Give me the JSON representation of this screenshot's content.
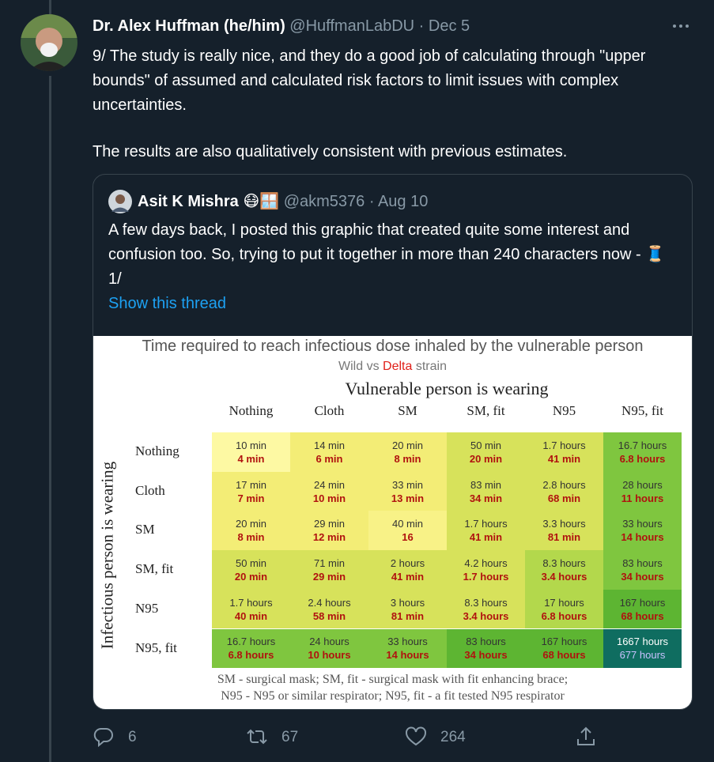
{
  "tweet": {
    "author_name": "Dr. Alex Huffman (he/him)",
    "handle": "@HuffmanLabDU",
    "date": "Dec 5",
    "text": [
      "9/ The study is really nice, and they do a good job of calculating through \"upper bounds\" of assumed and calculated risk factors to limit issues with complex uncertainties.",
      "The results are also qualitatively consistent with previous estimates."
    ]
  },
  "quote": {
    "author_name": "Asit K Mishra 😷🪟",
    "handle": "@akm5376",
    "date": "Aug 10",
    "text": "A few days back, I posted this graphic that created quite some interest and confusion too. So, trying to put it together in more than 240 characters now - 🧵 1/",
    "show_thread": "Show this thread"
  },
  "image": {
    "title": "Time required to reach infectious dose inhaled by the vulnerable person",
    "subtitle": [
      "Wild vs",
      "Delta",
      "strain"
    ],
    "column_title": "Vulnerable person is wearing",
    "row_title": "Infectious person is wearing",
    "columns": [
      "Nothing",
      "Cloth",
      "SM",
      "SM, fit",
      "N95",
      "N95, fit"
    ],
    "rows": [
      {
        "label": "Nothing",
        "cells": [
          [
            "10 min",
            "4 min"
          ],
          [
            "14 min",
            "6 min"
          ],
          [
            "20 min",
            "8 min"
          ],
          [
            "50 min",
            "20 min"
          ],
          [
            "1.7 hours",
            "41 min"
          ],
          [
            "16.7 hours",
            "6.8 hours"
          ]
        ],
        "colors": [
          "#fdf9a3",
          "#f3ed76",
          "#f3ed76",
          "#d7e25b",
          "#d7e25b",
          "#7fc63f"
        ]
      },
      {
        "label": "Cloth",
        "cells": [
          [
            "17 min",
            "7 min"
          ],
          [
            "24 min",
            "10 min"
          ],
          [
            "33 min",
            "13 min"
          ],
          [
            "83 min",
            "34 min"
          ],
          [
            "2.8 hours",
            "68 min"
          ],
          [
            "28 hours",
            "11 hours"
          ]
        ],
        "colors": [
          "#f3ed76",
          "#f3ed76",
          "#f3ed76",
          "#d7e25b",
          "#d7e25b",
          "#7fc63f"
        ]
      },
      {
        "label": "SM",
        "cells": [
          [
            "20 min",
            "8 min"
          ],
          [
            "29 min",
            "12 min"
          ],
          [
            "40 min",
            "16"
          ],
          [
            "1.7 hours",
            "41 min"
          ],
          [
            "3.3 hours",
            "81 min"
          ],
          [
            "33 hours",
            "14 hours"
          ]
        ],
        "colors": [
          "#f3ed76",
          "#f3ed76",
          "#f8f287",
          "#d7e25b",
          "#d7e25b",
          "#7fc63f"
        ]
      },
      {
        "label": "SM, fit",
        "cells": [
          [
            "50 min",
            "20 min"
          ],
          [
            "71 min",
            "29 min"
          ],
          [
            "2 hours",
            "41 min"
          ],
          [
            "4.2 hours",
            "1.7 hours"
          ],
          [
            "8.3 hours",
            "3.4 hours"
          ],
          [
            "83 hours",
            "34 hours"
          ]
        ],
        "colors": [
          "#d7e25b",
          "#d7e25b",
          "#d7e25b",
          "#d7e25b",
          "#b3d84c",
          "#7fc63f"
        ]
      },
      {
        "label": "N95",
        "cells": [
          [
            "1.7 hours",
            "40 min"
          ],
          [
            "2.4 hours",
            "58 min"
          ],
          [
            "3 hours",
            "81 min"
          ],
          [
            "8.3 hours",
            "3.4 hours"
          ],
          [
            "17 hours",
            "6.8 hours"
          ],
          [
            "167 hours",
            "68 hours"
          ]
        ],
        "colors": [
          "#d7e25b",
          "#d7e25b",
          "#d7e25b",
          "#d7e25b",
          "#b3d84c",
          "#5db532"
        ]
      },
      {
        "label": "N95, fit",
        "cells": [
          [
            "16.7 hours",
            "6.8 hours"
          ],
          [
            "24 hours",
            "10 hours"
          ],
          [
            "33 hours",
            "14 hours"
          ],
          [
            "83 hours",
            "34 hours"
          ],
          [
            "167 hours",
            "68 hours"
          ],
          [
            "1667 hours",
            "677 hours"
          ]
        ],
        "colors": [
          "#7fc63f",
          "#7fc63f",
          "#7fc63f",
          "#5db532",
          "#5db532",
          "#0f6d60"
        ]
      }
    ],
    "footnote": [
      "SM - surgical mask; SM, fit - surgical mask with fit enhancing brace;",
      "N95 - N95 or similar respirator; N95, fit - a fit tested N95 respirator"
    ]
  },
  "actions": {
    "replies": 6,
    "retweets": 67,
    "likes": 264
  }
}
